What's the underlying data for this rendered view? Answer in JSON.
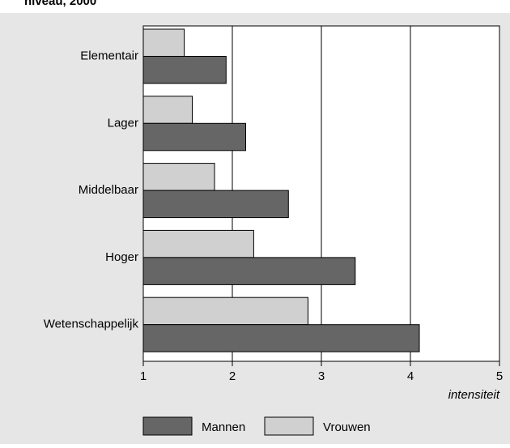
{
  "chart_data": {
    "type": "bar",
    "orientation": "horizontal",
    "title": "niveau, 2000",
    "categories": [
      "Elementair",
      "Lager",
      "Middelbaar",
      "Hoger",
      "Wetenschappelijk"
    ],
    "series": [
      {
        "name": "Mannen",
        "color": "#666666",
        "values": [
          1.93,
          2.15,
          2.63,
          3.38,
          4.1
        ]
      },
      {
        "name": "Vrouwen",
        "color": "#d0d0d0",
        "values": [
          1.46,
          1.55,
          1.8,
          2.24,
          2.85
        ]
      }
    ],
    "x_label": "intensiteit",
    "xlim": [
      1,
      5
    ],
    "xticks": [
      1,
      2,
      3,
      4,
      5
    ],
    "grid": true,
    "legend": "bottom"
  }
}
